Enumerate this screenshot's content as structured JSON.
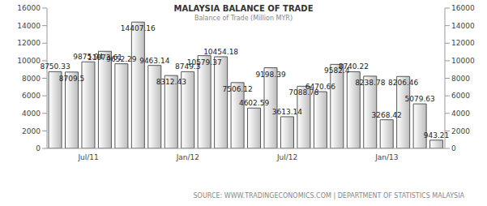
{
  "chart_data": {
    "type": "bar",
    "title": "MALAYSIA BALANCE OF TRADE",
    "subtitle": "Balance of Trade (Million MYR)",
    "source": "SOURCE: WWW.TRADINGECONOMICS.COM | DEPARTMENT OF STATISTICS MALAYSIA",
    "categories": [
      null,
      null,
      "Jul/11",
      null,
      null,
      null,
      null,
      null,
      "Jan/12",
      null,
      null,
      null,
      null,
      null,
      "Jul/12",
      null,
      null,
      null,
      null,
      null,
      "Jan/13",
      null,
      null,
      null
    ],
    "values": [
      8750.33,
      8709.5,
      9875.94,
      11073.61,
      9652.29,
      14407.16,
      9463.14,
      8312.43,
      8749.3,
      10579.37,
      10454.18,
      7506.12,
      4602.59,
      9198.39,
      3613.14,
      7088.78,
      6470.66,
      9582.4,
      8740.22,
      8238.78,
      3268.42,
      8206.46,
      5079.63,
      943.21
    ],
    "color": "#bdbdbd",
    "ylim": [
      0,
      16000
    ],
    "yticks": [
      0,
      2000,
      4000,
      6000,
      8000,
      10000,
      12000,
      14000,
      16000
    ],
    "y2lim": [
      0,
      16000
    ],
    "y2ticks": [
      0,
      2000,
      4000,
      6000,
      8000,
      10000,
      12000,
      14000,
      16000
    ],
    "grid": false,
    "data_labels": true
  }
}
